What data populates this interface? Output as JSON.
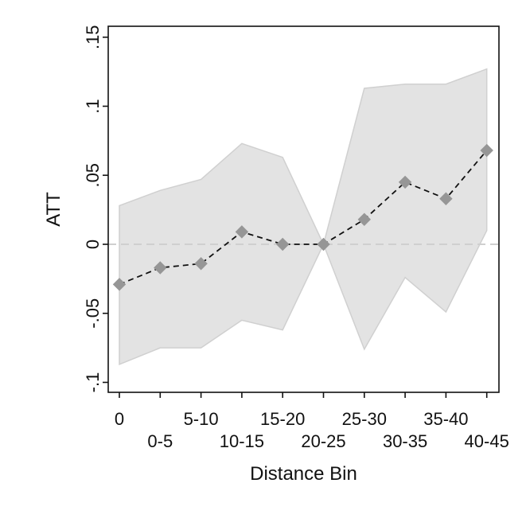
{
  "chart_data": {
    "type": "line",
    "title": "",
    "xlabel": "Distance Bin",
    "ylabel": "ATT",
    "categories": [
      "0",
      "0-5",
      "5-10",
      "10-15",
      "15-20",
      "20-25",
      "25-30",
      "30-35",
      "35-40",
      "40-45"
    ],
    "ylim": [
      -0.1,
      0.15
    ],
    "yticks": [
      {
        "value": -0.1,
        "label": "-.1"
      },
      {
        "value": -0.05,
        "label": "-.05"
      },
      {
        "value": 0,
        "label": "0"
      },
      {
        "value": 0.05,
        "label": ".05"
      },
      {
        "value": 0.1,
        "label": ".1"
      },
      {
        "value": 0.15,
        "label": ".15"
      }
    ],
    "series": [
      {
        "values": [
          -0.029,
          -0.017,
          -0.014,
          0.009,
          0.0,
          0.0,
          0.018,
          0.045,
          0.033,
          0.068
        ],
        "ci_lower": [
          -0.087,
          -0.075,
          -0.075,
          -0.055,
          -0.062,
          0.0,
          -0.076,
          -0.024,
          -0.049,
          0.01
        ],
        "ci_upper": [
          0.028,
          0.039,
          0.047,
          0.073,
          0.063,
          0.0,
          0.113,
          0.116,
          0.116,
          0.127
        ],
        "line_style": "dashed",
        "marker": "diamond"
      }
    ],
    "reference_line": {
      "value": 0,
      "style": "dashed"
    },
    "colors": {
      "line": "#111111",
      "marker": "#969696",
      "band_fill": "#e3e3e3",
      "band_stroke": "#d0d0d0",
      "reference": "#cfcfcf",
      "axes": "#111111"
    },
    "grid": false,
    "legend": "none"
  }
}
